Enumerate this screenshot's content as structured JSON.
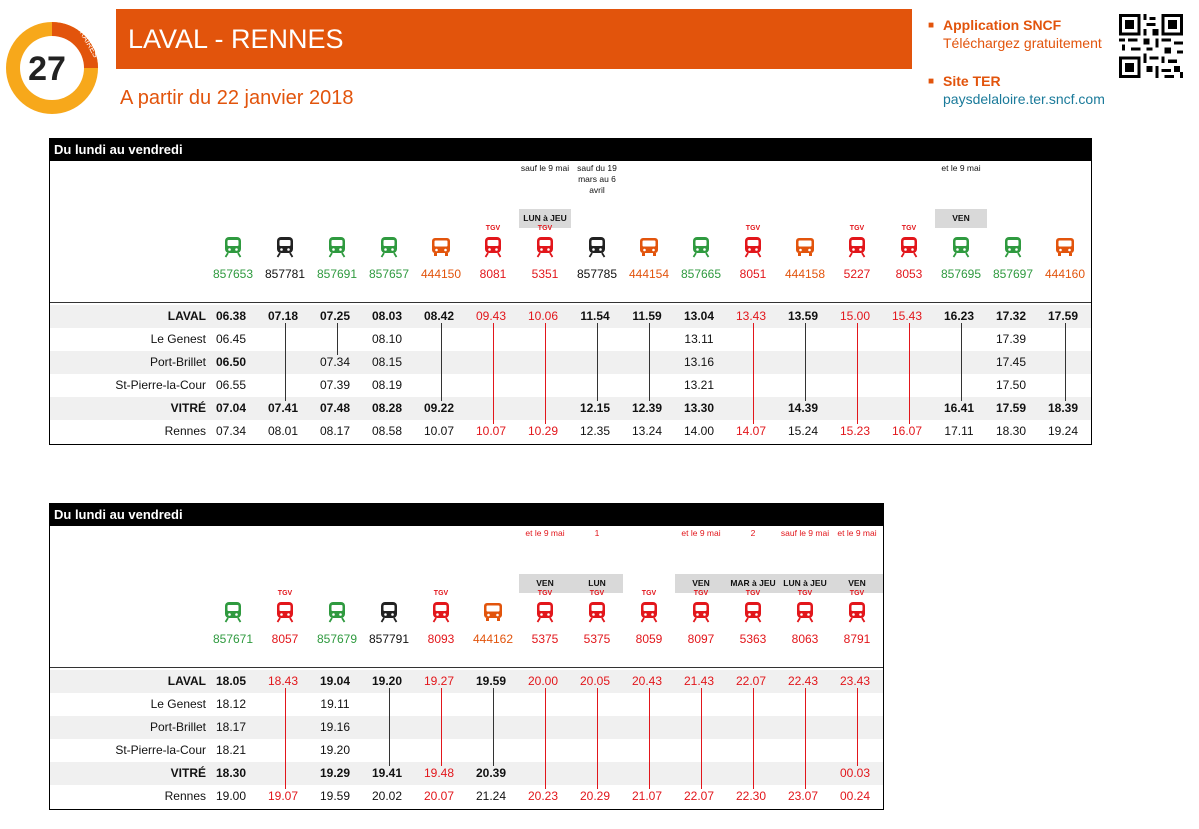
{
  "header": {
    "logo_number": "27",
    "logo_label": "HORAIRES",
    "title": "LAVAL - RENNES",
    "subtitle": "A partir du 22 janvier 2018",
    "app_title": "Application SNCF",
    "app_sub": "Téléchargez gratuitement",
    "site_title": "Site TER",
    "site_url": "paysdelaloire.ter.sncf.com",
    "accent": "#e2540c"
  },
  "stations": [
    {
      "name": "LAVAL",
      "bold": true
    },
    {
      "name": "Le Genest",
      "bold": false
    },
    {
      "name": "Port-Brillet",
      "bold": false
    },
    {
      "name": "St-Pierre-la-Cour",
      "bold": false
    },
    {
      "name": "VITRÉ",
      "bold": true
    },
    {
      "name": "Rennes",
      "bold": false
    }
  ],
  "tables": [
    {
      "title": "Du lundi au vendredi",
      "trains": [
        {
          "num": "857653",
          "kind": "ter",
          "color": "green",
          "times": [
            "06.38",
            "06.45",
            "06.50",
            "06.55",
            "07.04",
            "07.34"
          ],
          "bold": [
            1,
            0,
            1,
            0,
            1,
            0
          ]
        },
        {
          "num": "857781",
          "kind": "ter",
          "color": "black",
          "times": [
            "07.18",
            "",
            "",
            "",
            "07.41",
            "08.01"
          ],
          "bold": [
            1,
            0,
            0,
            0,
            1,
            0
          ]
        },
        {
          "num": "857691",
          "kind": "ter",
          "color": "green",
          "times": [
            "07.25",
            "",
            "07.34",
            "07.39",
            "07.48",
            "08.17"
          ],
          "bold": [
            1,
            0,
            0,
            0,
            1,
            0
          ]
        },
        {
          "num": "857657",
          "kind": "ter",
          "color": "green",
          "times": [
            "08.03",
            "08.10",
            "08.15",
            "08.19",
            "08.28",
            "08.58"
          ],
          "bold": [
            1,
            0,
            0,
            0,
            1,
            0
          ]
        },
        {
          "num": "444150",
          "kind": "bus",
          "color": "orange",
          "times": [
            "08.42",
            "",
            "",
            "",
            "09.22",
            "10.07"
          ],
          "bold": [
            1,
            0,
            0,
            0,
            1,
            0
          ]
        },
        {
          "num": "8081",
          "kind": "tgv",
          "color": "red",
          "times": [
            "09.43",
            "",
            "",
            "",
            "",
            "10.07"
          ],
          "bold": [
            0,
            0,
            0,
            0,
            0,
            0
          ]
        },
        {
          "num": "5351",
          "kind": "tgv",
          "color": "red",
          "times": [
            "10.06",
            "",
            "",
            "",
            "",
            "10.29"
          ],
          "bold": [
            0,
            0,
            0,
            0,
            0,
            0
          ],
          "note": "sauf le 9 mai",
          "note_color": "black",
          "days": "LUN à JEU"
        },
        {
          "num": "857785",
          "kind": "ter",
          "color": "black",
          "times": [
            "11.54",
            "",
            "",
            "",
            "12.15",
            "12.35"
          ],
          "bold": [
            1,
            0,
            0,
            0,
            1,
            0
          ],
          "note": "sauf du 19 mars au 6 avril",
          "note_color": "black"
        },
        {
          "num": "444154",
          "kind": "bus",
          "color": "orange",
          "times": [
            "11.59",
            "",
            "",
            "",
            "12.39",
            "13.24"
          ],
          "bold": [
            1,
            0,
            0,
            0,
            1,
            0
          ]
        },
        {
          "num": "857665",
          "kind": "ter",
          "color": "green",
          "times": [
            "13.04",
            "13.11",
            "13.16",
            "13.21",
            "13.30",
            "14.00"
          ],
          "bold": [
            1,
            0,
            0,
            0,
            1,
            0
          ]
        },
        {
          "num": "8051",
          "kind": "tgv",
          "color": "red",
          "times": [
            "13.43",
            "",
            "",
            "",
            "",
            "14.07"
          ],
          "bold": [
            0,
            0,
            0,
            0,
            0,
            0
          ]
        },
        {
          "num": "444158",
          "kind": "bus",
          "color": "orange",
          "times": [
            "13.59",
            "",
            "",
            "",
            "14.39",
            "15.24"
          ],
          "bold": [
            1,
            0,
            0,
            0,
            1,
            0
          ]
        },
        {
          "num": "5227",
          "kind": "tgv",
          "color": "red",
          "times": [
            "15.00",
            "",
            "",
            "",
            "",
            "15.23"
          ],
          "bold": [
            0,
            0,
            0,
            0,
            0,
            0
          ]
        },
        {
          "num": "8053",
          "kind": "tgv",
          "color": "red",
          "times": [
            "15.43",
            "",
            "",
            "",
            "",
            "16.07"
          ],
          "bold": [
            0,
            0,
            0,
            0,
            0,
            0
          ]
        },
        {
          "num": "857695",
          "kind": "ter",
          "color": "green",
          "times": [
            "16.23",
            "",
            "",
            "",
            "16.41",
            "17.11"
          ],
          "bold": [
            1,
            0,
            0,
            0,
            1,
            0
          ],
          "note": "et le 9 mai",
          "note_color": "black",
          "days": "VEN"
        },
        {
          "num": "857697",
          "kind": "ter",
          "color": "green",
          "times": [
            "17.32",
            "17.39",
            "17.45",
            "17.50",
            "17.59",
            "18.30"
          ],
          "bold": [
            1,
            0,
            0,
            0,
            1,
            0
          ]
        },
        {
          "num": "444160",
          "kind": "bus",
          "color": "orange",
          "times": [
            "17.59",
            "",
            "",
            "",
            "18.39",
            "19.24"
          ],
          "bold": [
            1,
            0,
            0,
            0,
            1,
            0
          ]
        }
      ]
    },
    {
      "title": "Du lundi au vendredi",
      "trains": [
        {
          "num": "857671",
          "kind": "ter",
          "color": "green",
          "times": [
            "18.05",
            "18.12",
            "18.17",
            "18.21",
            "18.30",
            "19.00"
          ],
          "bold": [
            1,
            0,
            0,
            0,
            1,
            0
          ]
        },
        {
          "num": "8057",
          "kind": "tgv",
          "color": "red",
          "times": [
            "18.43",
            "",
            "",
            "",
            "",
            "19.07"
          ],
          "bold": [
            0,
            0,
            0,
            0,
            0,
            0
          ]
        },
        {
          "num": "857679",
          "kind": "ter",
          "color": "green",
          "times": [
            "19.04",
            "19.11",
            "19.16",
            "19.20",
            "19.29",
            "19.59"
          ],
          "bold": [
            1,
            0,
            0,
            0,
            1,
            0
          ]
        },
        {
          "num": "857791",
          "kind": "ter",
          "color": "black",
          "times": [
            "19.20",
            "",
            "",
            "",
            "19.41",
            "20.02"
          ],
          "bold": [
            1,
            0,
            0,
            0,
            1,
            0
          ]
        },
        {
          "num": "8093",
          "kind": "tgv",
          "color": "red",
          "times": [
            "19.27",
            "",
            "",
            "",
            "19.48",
            "20.07"
          ],
          "bold": [
            0,
            0,
            0,
            0,
            0,
            0
          ]
        },
        {
          "num": "444162",
          "kind": "bus",
          "color": "orange",
          "times": [
            "19.59",
            "",
            "",
            "",
            "20.39",
            "21.24"
          ],
          "bold": [
            1,
            0,
            0,
            0,
            1,
            0
          ]
        },
        {
          "num": "5375",
          "kind": "tgv",
          "color": "red",
          "times": [
            "20.00",
            "",
            "",
            "",
            "",
            "20.23"
          ],
          "bold": [
            0,
            0,
            0,
            0,
            0,
            0
          ],
          "note": "et le 9 mai",
          "note_color": "red",
          "days": "VEN"
        },
        {
          "num": "5375",
          "kind": "tgv",
          "color": "red",
          "times": [
            "20.05",
            "",
            "",
            "",
            "",
            "20.29"
          ],
          "bold": [
            0,
            0,
            0,
            0,
            0,
            0
          ],
          "note": "1",
          "note_color": "red",
          "days": "LUN"
        },
        {
          "num": "8059",
          "kind": "tgv",
          "color": "red",
          "times": [
            "20.43",
            "",
            "",
            "",
            "",
            "21.07"
          ],
          "bold": [
            0,
            0,
            0,
            0,
            0,
            0
          ]
        },
        {
          "num": "8097",
          "kind": "tgv",
          "color": "red",
          "times": [
            "21.43",
            "",
            "",
            "",
            "",
            "22.07"
          ],
          "bold": [
            0,
            0,
            0,
            0,
            0,
            0
          ],
          "note": "et le 9 mai",
          "note_color": "red",
          "days": "VEN"
        },
        {
          "num": "5363",
          "kind": "tgv",
          "color": "red",
          "times": [
            "22.07",
            "",
            "",
            "",
            "",
            "22.30"
          ],
          "bold": [
            0,
            0,
            0,
            0,
            0,
            0
          ],
          "note": "2",
          "note_color": "red",
          "days": "MAR à JEU"
        },
        {
          "num": "8063",
          "kind": "tgv",
          "color": "red",
          "times": [
            "22.43",
            "",
            "",
            "",
            "",
            "23.07"
          ],
          "bold": [
            0,
            0,
            0,
            0,
            0,
            0
          ],
          "note": "sauf le 9 mai",
          "note_color": "red",
          "days": "LUN à JEU"
        },
        {
          "num": "8791",
          "kind": "tgv",
          "color": "red",
          "times": [
            "23.43",
            "",
            "",
            "",
            "00.03",
            "00.24"
          ],
          "bold": [
            0,
            0,
            0,
            0,
            0,
            0
          ],
          "note": "et le 9 mai",
          "note_color": "red",
          "days": "VEN"
        }
      ]
    }
  ]
}
